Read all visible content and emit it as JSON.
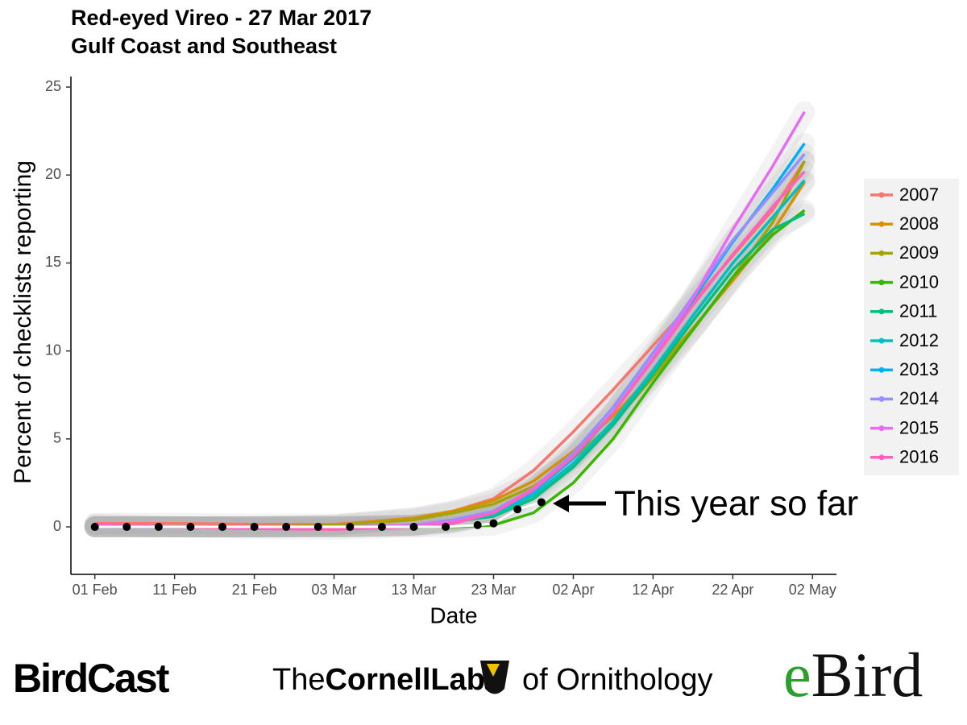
{
  "chart_data": {
    "type": "line",
    "title": "Red-eyed Vireo - 27 Mar 2017",
    "subtitle": "Gulf Coast and Southeast",
    "x_label": "Date",
    "y_label": "Percent of checklists reporting",
    "x": [
      "01 Feb",
      "11 Feb",
      "21 Feb",
      "03 Mar",
      "13 Mar",
      "18 Mar",
      "23 Mar",
      "28 Mar",
      "02 Apr",
      "07 Apr",
      "12 Apr",
      "17 Apr",
      "22 Apr",
      "27 Apr",
      "01 May"
    ],
    "series": [
      {
        "name": "2007",
        "color": "#F8766D",
        "values": [
          0.2,
          0.2,
          0.15,
          0.15,
          0.5,
          0.9,
          1.6,
          3.2,
          5.4,
          7.8,
          10.3,
          12.8,
          15.4,
          18.0,
          20.8
        ]
      },
      {
        "name": "2008",
        "color": "#D89000",
        "values": [
          0.1,
          0,
          0,
          0.1,
          0.5,
          0.9,
          1.5,
          2.6,
          4.3,
          6.3,
          8.7,
          11.3,
          14.0,
          16.8,
          19.6
        ]
      },
      {
        "name": "2009",
        "color": "#A3A500",
        "values": [
          0,
          0,
          0,
          0.1,
          0.4,
          0.8,
          1.3,
          2.3,
          3.9,
          5.9,
          8.5,
          11.2,
          14.2,
          17.3,
          20.8
        ]
      },
      {
        "name": "2010",
        "color": "#39B600",
        "values": [
          0,
          0,
          0,
          0,
          0,
          0,
          0.1,
          0.8,
          2.5,
          5.0,
          8.2,
          11.2,
          14.2,
          16.6,
          18.0
        ]
      },
      {
        "name": "2011",
        "color": "#00BF7D",
        "values": [
          0,
          0,
          0,
          0,
          0.1,
          0.3,
          0.6,
          1.6,
          3.4,
          5.8,
          8.7,
          11.7,
          14.6,
          16.9,
          17.8
        ]
      },
      {
        "name": "2012",
        "color": "#00BFC4",
        "values": [
          0,
          0,
          0,
          0,
          0.1,
          0.3,
          0.7,
          1.8,
          3.6,
          6.0,
          8.9,
          12.0,
          15.0,
          17.6,
          19.7
        ]
      },
      {
        "name": "2013",
        "color": "#00B0F6",
        "values": [
          0,
          0,
          0,
          0,
          0.1,
          0.3,
          0.8,
          2.0,
          3.9,
          6.5,
          9.6,
          12.9,
          16.2,
          19.2,
          21.8
        ]
      },
      {
        "name": "2014",
        "color": "#9590FF",
        "values": [
          0,
          0,
          0,
          0,
          0.1,
          0.4,
          0.9,
          2.2,
          4.2,
          6.8,
          9.9,
          13.1,
          16.3,
          19.0,
          21.2
        ]
      },
      {
        "name": "2015",
        "color": "#E76BF3",
        "values": [
          0,
          0,
          0,
          0,
          0.1,
          0.3,
          0.8,
          2.2,
          4.0,
          6.5,
          9.6,
          13.0,
          16.9,
          20.5,
          23.6
        ]
      },
      {
        "name": "2016",
        "color": "#FF62BC",
        "values": [
          0.15,
          0,
          -0.1,
          -0.15,
          0,
          0.2,
          0.8,
          2.1,
          4.0,
          6.5,
          9.5,
          12.6,
          15.5,
          18.2,
          20.2
        ]
      }
    ],
    "this_year": {
      "annotation": "This year so far",
      "color": "#000000",
      "x": [
        "01 Feb",
        "05 Feb",
        "09 Feb",
        "13 Feb",
        "17 Feb",
        "21 Feb",
        "25 Feb",
        "01 Mar",
        "05 Mar",
        "09 Mar",
        "13 Mar",
        "17 Mar",
        "21 Mar",
        "23 Mar",
        "26 Mar",
        "29 Mar"
      ],
      "values": [
        0,
        0,
        0,
        0,
        0,
        0,
        0,
        0,
        0,
        0,
        0,
        0,
        0.1,
        0.2,
        1.0,
        1.4
      ]
    },
    "xlim": [
      "29 Jan",
      "05 May"
    ],
    "xticks": [
      "01 Feb",
      "11 Feb",
      "21 Feb",
      "03 Mar",
      "13 Mar",
      "23 Mar",
      "02 Apr",
      "12 Apr",
      "22 Apr",
      "02 May"
    ],
    "ylim": [
      -2.7,
      25.6
    ],
    "yticks": [
      0,
      5,
      10,
      15,
      20,
      25
    ],
    "legend": "right"
  },
  "logos": {
    "birdcast": "BirdCast",
    "cornell_the": "The",
    "cornell_name": "CornellLab",
    "cornell_of": "of Ornithology",
    "ebird_e": "e",
    "ebird_bird": "Bird"
  }
}
